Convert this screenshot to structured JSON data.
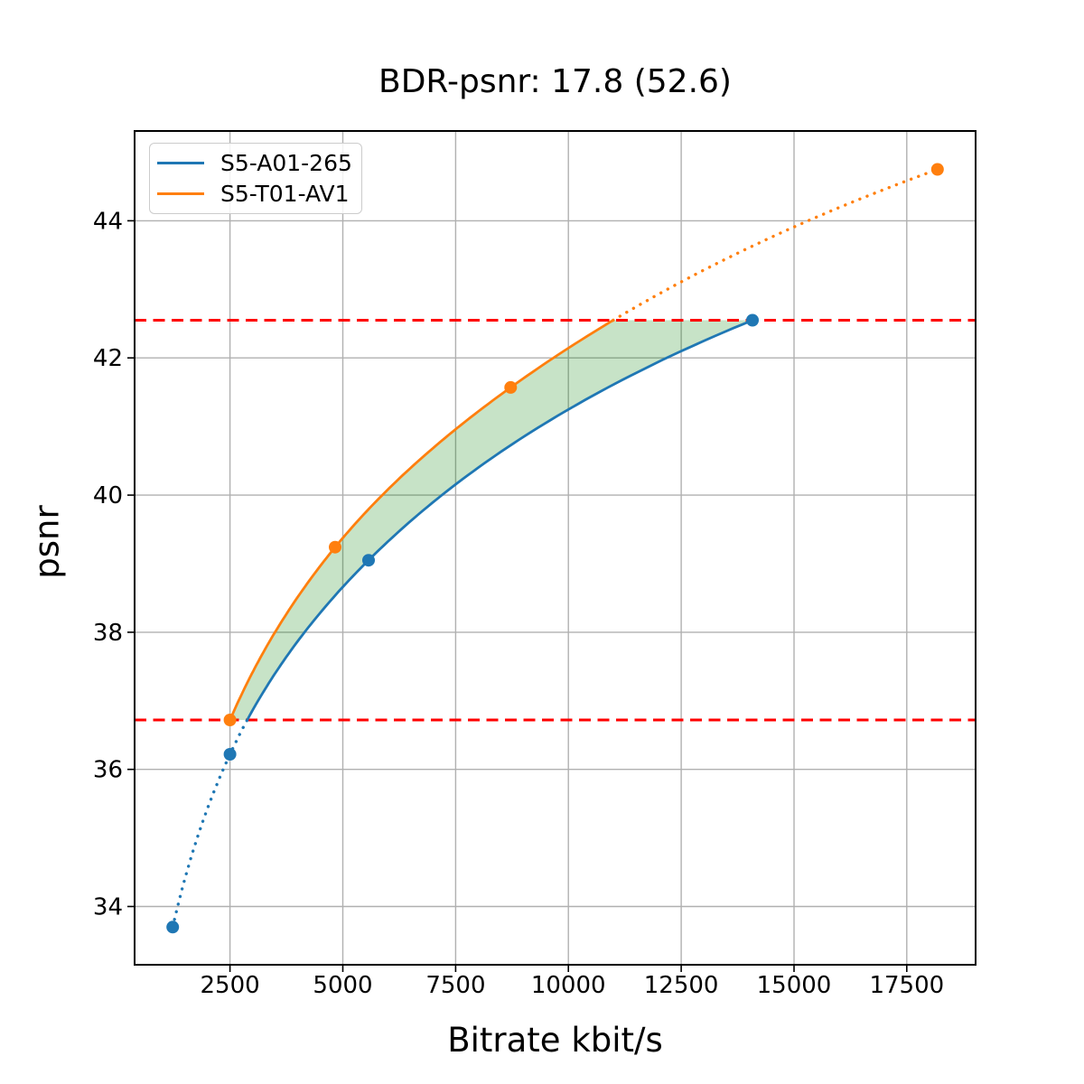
{
  "figure": {
    "title": "BDR-psnr: 17.8 (52.6)",
    "xlabel": "Bitrate kbit/s",
    "ylabel": "psnr"
  },
  "legend": {
    "items": [
      {
        "label": "S5-A01-265",
        "color": "#1f77b4"
      },
      {
        "label": "S5-T01-AV1",
        "color": "#ff7f0e"
      }
    ]
  },
  "chart_data": {
    "type": "line",
    "title": "BDR-psnr: 17.8 (52.6)",
    "bdr_psnr_value": "17.8",
    "bdr_psnr_secondary": "52.6",
    "xlabel": "Bitrate kbit/s",
    "ylabel": "psnr",
    "xlim": [
      385,
      19025
    ],
    "ylim": [
      33.15,
      45.31
    ],
    "xticks": [
      2500,
      5000,
      7500,
      10000,
      12500,
      15000,
      17500
    ],
    "yticks": [
      34,
      36,
      38,
      40,
      42,
      44
    ],
    "grid": true,
    "grid_color": "#b0b0b0",
    "legend_position": "upper left",
    "series": [
      {
        "name": "S5-A01-265",
        "color": "#1f77b4",
        "marker": "circle",
        "x": [
          1230,
          2500,
          5570,
          14080
        ],
        "y": [
          33.7,
          36.22,
          39.05,
          42.55
        ],
        "style_note": "dotted outside BD interval, solid inside"
      },
      {
        "name": "S5-T01-AV1",
        "color": "#ff7f0e",
        "marker": "circle",
        "x": [
          2500,
          4830,
          8720,
          18180
        ],
        "y": [
          36.72,
          39.24,
          41.57,
          44.75
        ],
        "style_note": "solid inside BD interval, dotted above"
      }
    ],
    "bd_interval": {
      "lower_psnr": 36.72,
      "upper_psnr": 42.55,
      "line_color": "#ff0000",
      "line_style": "dashed",
      "fill_color": "#008000",
      "fill_opacity": 0.22
    }
  }
}
